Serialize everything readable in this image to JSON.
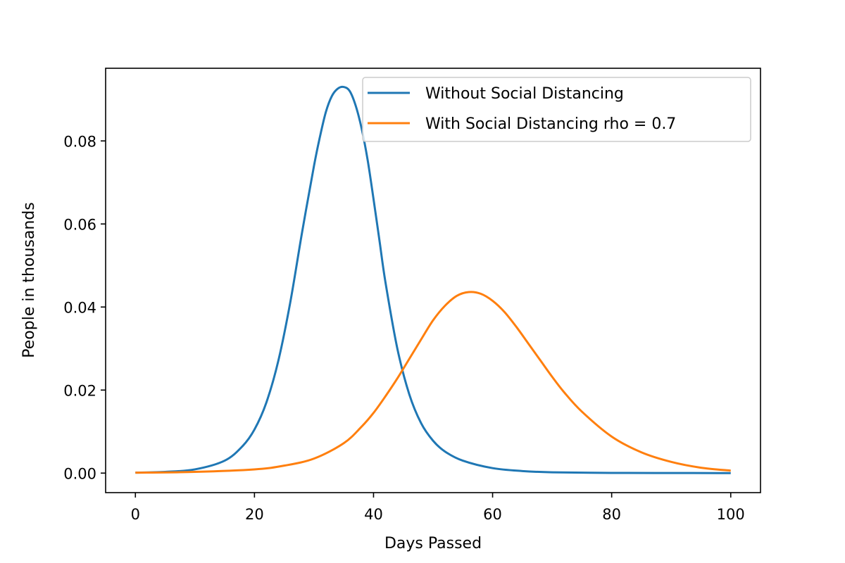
{
  "chart_data": {
    "type": "line",
    "title": "",
    "xlabel": "Days Passed",
    "ylabel": "People in thousands",
    "xlim": [
      -5,
      105
    ],
    "ylim": [
      -0.0047,
      0.0975
    ],
    "xticks": [
      0,
      20,
      40,
      60,
      80,
      100
    ],
    "xtick_labels": [
      "0",
      "20",
      "40",
      "60",
      "80",
      "100"
    ],
    "yticks": [
      0.0,
      0.02,
      0.04,
      0.06,
      0.08
    ],
    "ytick_labels": [
      "0.00",
      "0.02",
      "0.04",
      "0.06",
      "0.08"
    ],
    "grid": false,
    "legend_position": "top-right",
    "series": [
      {
        "name": "Without Social Distancing",
        "color": "#1f77b4",
        "x": [
          0,
          5,
          10,
          15,
          18,
          20,
          22,
          24,
          26,
          28,
          30,
          31,
          32,
          33,
          34,
          35,
          36,
          37,
          38,
          39,
          40,
          41,
          42,
          44,
          46,
          48,
          50,
          52,
          55,
          60,
          65,
          70,
          80,
          90,
          100
        ],
        "y": [
          0.0001,
          0.0003,
          0.0009,
          0.003,
          0.0065,
          0.0105,
          0.017,
          0.027,
          0.041,
          0.058,
          0.074,
          0.081,
          0.087,
          0.0908,
          0.0926,
          0.093,
          0.092,
          0.0885,
          0.083,
          0.0755,
          0.066,
          0.056,
          0.046,
          0.03,
          0.019,
          0.012,
          0.0078,
          0.0052,
          0.003,
          0.0012,
          0.0005,
          0.0002,
          5e-05,
          2e-05,
          1e-05
        ]
      },
      {
        "name": "With Social Distancing rho = 0.7",
        "color": "#ff7f0e",
        "x": [
          0,
          10,
          20,
          25,
          30,
          35,
          38,
          40,
          42,
          44,
          46,
          48,
          50,
          52,
          54,
          56,
          58,
          60,
          62,
          64,
          66,
          68,
          70,
          72,
          75,
          80,
          85,
          90,
          95,
          100
        ],
        "y": [
          0.0001,
          0.0003,
          0.0009,
          0.0018,
          0.0035,
          0.0072,
          0.0112,
          0.0145,
          0.0185,
          0.0228,
          0.0275,
          0.0322,
          0.0368,
          0.0403,
          0.0427,
          0.0436,
          0.0432,
          0.0415,
          0.0388,
          0.0352,
          0.0312,
          0.0272,
          0.0232,
          0.0195,
          0.0148,
          0.0088,
          0.005,
          0.0027,
          0.0013,
          0.0006
        ]
      }
    ]
  }
}
